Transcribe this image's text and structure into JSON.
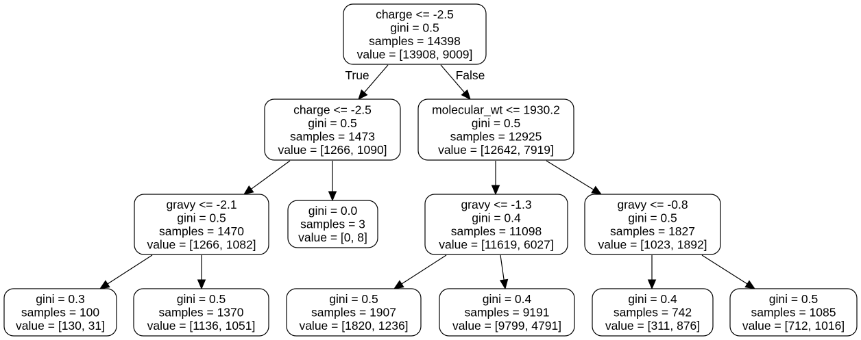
{
  "nodes": [
    {
      "id": "n0",
      "lines": [
        "charge <= -2.5",
        "gini = 0.5",
        "samples = 14398",
        "value = [13908, 9009]"
      ]
    },
    {
      "id": "n1",
      "lines": [
        "charge <= -2.5",
        "gini = 0.5",
        "samples = 1473",
        "value = [1266, 1090]"
      ]
    },
    {
      "id": "n2",
      "lines": [
        "molecular_wt <= 1930.2",
        "gini = 0.5",
        "samples = 12925",
        "value = [12642, 7919]"
      ]
    },
    {
      "id": "n3",
      "lines": [
        "gravy <= -2.1",
        "gini = 0.5",
        "samples = 1470",
        "value = [1266, 1082]"
      ]
    },
    {
      "id": "n4",
      "lines": [
        "gini = 0.0",
        "samples = 3",
        "value = [0, 8]"
      ]
    },
    {
      "id": "n5",
      "lines": [
        "gravy <= -1.3",
        "gini = 0.4",
        "samples = 11098",
        "value = [11619, 6027]"
      ]
    },
    {
      "id": "n6",
      "lines": [
        "gravy <= -0.8",
        "gini = 0.5",
        "samples = 1827",
        "value = [1023, 1892]"
      ]
    },
    {
      "id": "n7",
      "lines": [
        "gini = 0.3",
        "samples = 100",
        "value = [130, 31]"
      ]
    },
    {
      "id": "n8",
      "lines": [
        "gini = 0.5",
        "samples = 1370",
        "value = [1136, 1051]"
      ]
    },
    {
      "id": "n9",
      "lines": [
        "gini = 0.5",
        "samples = 1907",
        "value = [1820, 1236]"
      ]
    },
    {
      "id": "n10",
      "lines": [
        "gini = 0.4",
        "samples = 9191",
        "value = [9799, 4791]"
      ]
    },
    {
      "id": "n11",
      "lines": [
        "gini = 0.4",
        "samples = 742",
        "value = [311, 876]"
      ]
    },
    {
      "id": "n12",
      "lines": [
        "gini = 0.5",
        "samples = 1085",
        "value = [712, 1016]"
      ]
    }
  ],
  "edges": [
    {
      "from": "n0",
      "to": "n1",
      "label": "True"
    },
    {
      "from": "n0",
      "to": "n2",
      "label": "False"
    },
    {
      "from": "n1",
      "to": "n3",
      "label": ""
    },
    {
      "from": "n1",
      "to": "n4",
      "label": ""
    },
    {
      "from": "n2",
      "to": "n5",
      "label": ""
    },
    {
      "from": "n2",
      "to": "n6",
      "label": ""
    },
    {
      "from": "n3",
      "to": "n7",
      "label": ""
    },
    {
      "from": "n3",
      "to": "n8",
      "label": ""
    },
    {
      "from": "n5",
      "to": "n9",
      "label": ""
    },
    {
      "from": "n5",
      "to": "n10",
      "label": ""
    },
    {
      "from": "n6",
      "to": "n11",
      "label": ""
    },
    {
      "from": "n6",
      "to": "n12",
      "label": ""
    }
  ]
}
